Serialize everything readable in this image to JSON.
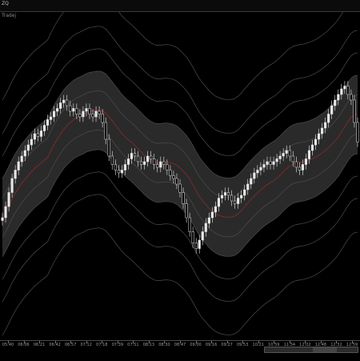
{
  "header": {
    "symbol": "ZQ",
    "subtitle": "Tradej"
  },
  "time_axis": {
    "labels": [
      "05:40",
      "06:06",
      "06:21",
      "06:42",
      "06:57",
      "07:12",
      "07:18",
      "07:39",
      "07:51",
      "08:13",
      "08:30",
      "08:47",
      "09:00",
      "09:16",
      "09:27",
      "09:53",
      "10:21",
      "10:59",
      "11:34",
      "12:02",
      "12:48",
      "12:32",
      "12:59"
    ]
  },
  "colors": {
    "background": "#000000",
    "band_fill": "#2a2a2a",
    "envelope_lines": "#4d4d4d",
    "mid_line": "#7a2a2a",
    "candles": "#e8e8e8"
  },
  "chart_data": {
    "type": "candlestick",
    "title": "",
    "xlabel": "",
    "ylabel": "",
    "ylim": [
      0,
      100
    ],
    "closes": [
      38,
      42,
      47,
      52,
      55,
      58,
      60,
      62,
      64,
      66,
      68,
      67,
      69,
      71,
      73,
      74,
      76,
      77,
      79,
      80,
      78,
      76,
      77,
      75,
      74,
      76,
      77,
      75,
      74,
      76,
      75,
      72,
      66,
      60,
      57,
      55,
      54,
      55,
      57,
      59,
      61,
      60,
      58,
      57,
      58,
      60,
      59,
      57,
      56,
      58,
      57,
      55,
      53,
      52,
      50,
      47,
      43,
      38,
      33,
      29,
      27,
      30,
      33,
      36,
      38,
      40,
      42,
      45,
      46,
      47,
      46,
      44,
      43,
      45,
      46,
      48,
      50,
      52,
      54,
      55,
      56,
      57,
      58,
      57,
      58,
      59,
      60,
      61,
      62,
      60,
      58,
      56,
      55,
      57,
      59,
      62,
      64,
      66,
      68,
      70,
      72,
      75,
      78,
      80,
      82,
      84,
      85,
      82,
      80,
      72,
      65
    ]
  }
}
